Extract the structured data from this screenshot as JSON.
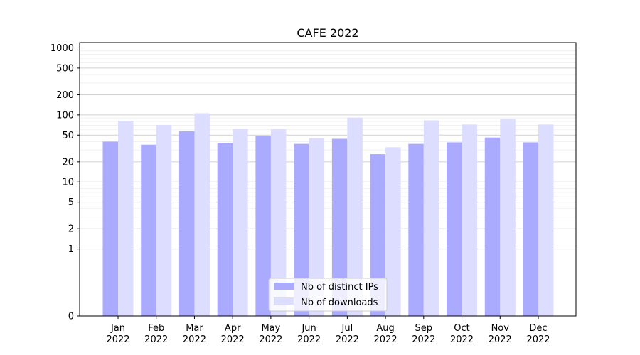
{
  "chart_data": {
    "type": "bar",
    "title": "CAFE 2022",
    "xlabel": "",
    "ylabel": "",
    "y_scale": "symlog",
    "ylim": [
      0,
      1200
    ],
    "y_ticks": [
      0,
      1,
      2,
      5,
      10,
      20,
      50,
      100,
      200,
      500,
      1000
    ],
    "grid": true,
    "legend": "bottom-center",
    "categories": [
      [
        "Jan",
        "2022"
      ],
      [
        "Feb",
        "2022"
      ],
      [
        "Mar",
        "2022"
      ],
      [
        "Apr",
        "2022"
      ],
      [
        "May",
        "2022"
      ],
      [
        "Jun",
        "2022"
      ],
      [
        "Jul",
        "2022"
      ],
      [
        "Aug",
        "2022"
      ],
      [
        "Sep",
        "2022"
      ],
      [
        "Oct",
        "2022"
      ],
      [
        "Nov",
        "2022"
      ],
      [
        "Dec",
        "2022"
      ]
    ],
    "series": [
      {
        "name": "Nb of distinct IPs",
        "color": "#aaaaff",
        "values": [
          40,
          36,
          57,
          38,
          48,
          37,
          44,
          26,
          37,
          39,
          46,
          39
        ]
      },
      {
        "name": "Nb of downloads",
        "color": "#ddddff",
        "values": [
          82,
          71,
          106,
          62,
          61,
          45,
          91,
          33,
          83,
          72,
          86,
          72
        ]
      }
    ]
  }
}
